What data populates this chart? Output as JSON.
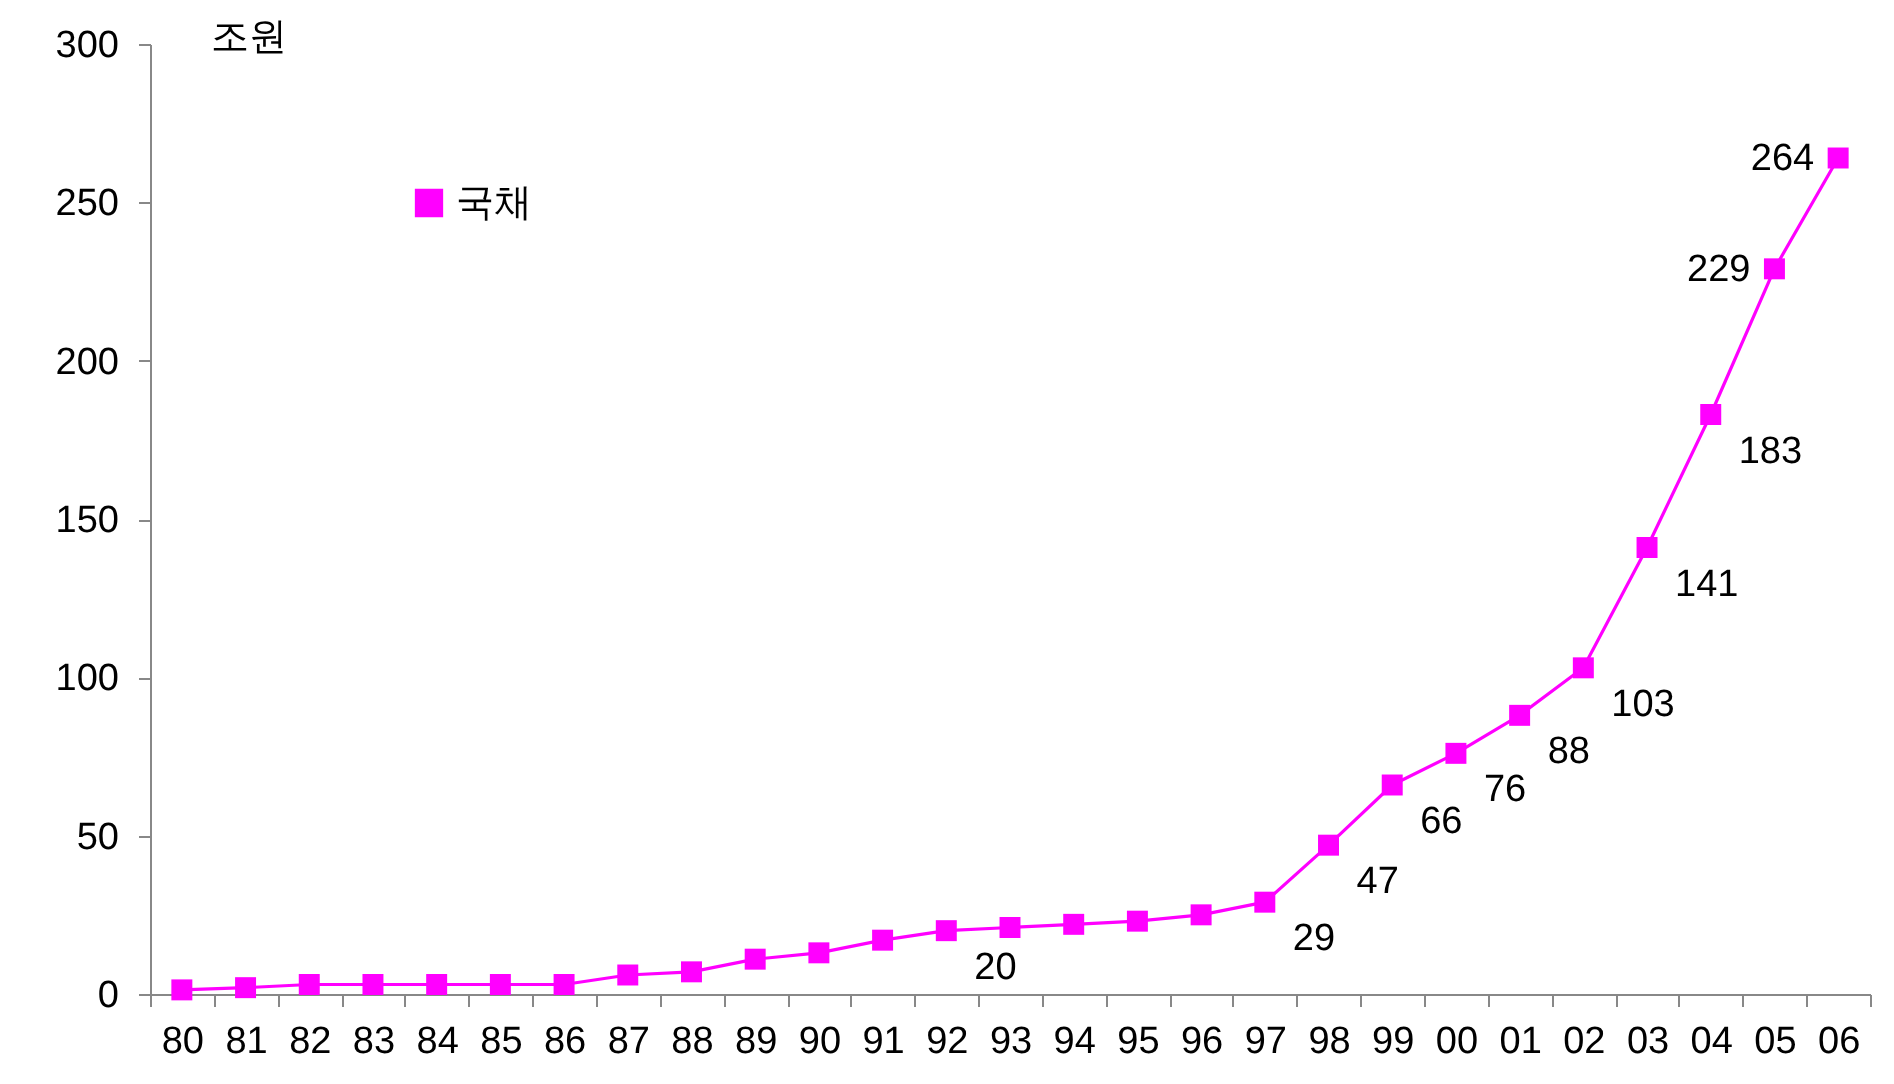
{
  "chart_data": {
    "type": "line",
    "ylabel": "조원",
    "categories": [
      "80",
      "81",
      "82",
      "83",
      "84",
      "85",
      "86",
      "87",
      "88",
      "89",
      "90",
      "91",
      "92",
      "93",
      "94",
      "95",
      "96",
      "97",
      "98",
      "99",
      "00",
      "01",
      "02",
      "03",
      "04",
      "05",
      "06"
    ],
    "series": [
      {
        "name": "국채",
        "color": "#ff00ff",
        "values": [
          1.3,
          2,
          3,
          3,
          3,
          3,
          3,
          6,
          7,
          11,
          13,
          17,
          20,
          21,
          22,
          23,
          25,
          29,
          47,
          66,
          76,
          88,
          103,
          141,
          183,
          229,
          264
        ],
        "value_labels": [
          null,
          null,
          null,
          null,
          null,
          null,
          null,
          null,
          null,
          null,
          null,
          null,
          "20",
          null,
          null,
          null,
          null,
          "29",
          "47",
          "66",
          "76",
          "88",
          "103",
          "141",
          "183",
          "229",
          "264"
        ]
      }
    ],
    "ylim": [
      0,
      300
    ],
    "yticks": [
      0,
      50,
      100,
      150,
      200,
      250,
      300
    ],
    "marker": "square",
    "legend": "top left",
    "grid": false
  }
}
